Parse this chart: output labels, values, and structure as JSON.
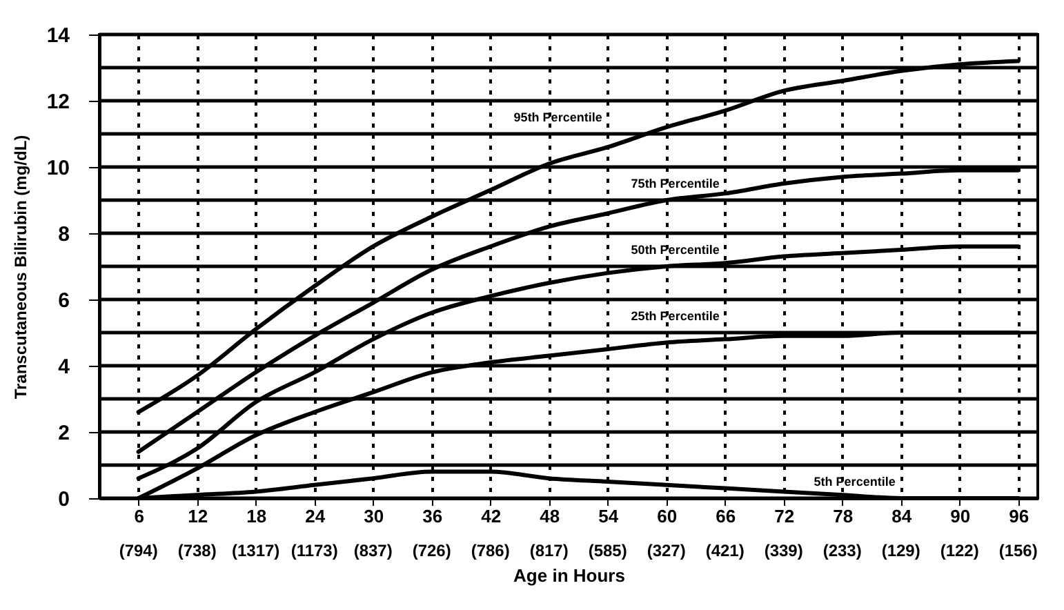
{
  "chart_data": {
    "type": "line",
    "xlabel": "Age in Hours",
    "ylabel": "Transcutaneous Bilirubin (mg/dL)",
    "x": [
      6,
      12,
      18,
      24,
      30,
      36,
      42,
      48,
      54,
      60,
      66,
      72,
      78,
      84,
      90,
      96
    ],
    "series": [
      {
        "name": "95th Percentile",
        "color": "#000000",
        "values": [
          2.6,
          3.7,
          5.1,
          6.4,
          7.6,
          8.5,
          9.3,
          10.1,
          10.6,
          11.2,
          11.7,
          12.3,
          12.6,
          12.9,
          13.1,
          13.2
        ]
      },
      {
        "name": "75th Percentile",
        "color": "#000000",
        "values": [
          1.4,
          2.6,
          3.8,
          4.9,
          5.9,
          6.9,
          7.6,
          8.2,
          8.6,
          9.0,
          9.2,
          9.5,
          9.7,
          9.8,
          9.9,
          9.9
        ]
      },
      {
        "name": "50th Percentile",
        "color": "#000000",
        "values": [
          0.6,
          1.5,
          2.9,
          3.8,
          4.8,
          5.6,
          6.1,
          6.5,
          6.8,
          7.0,
          7.1,
          7.3,
          7.4,
          7.5,
          7.6,
          7.6
        ]
      },
      {
        "name": "25th Percentile",
        "color": "#000000",
        "values": [
          0.0,
          0.9,
          1.9,
          2.6,
          3.2,
          3.8,
          4.1,
          4.3,
          4.5,
          4.7,
          4.8,
          4.9,
          4.9,
          5.0,
          5.0,
          5.0
        ]
      },
      {
        "name": "5th Percentile",
        "color": "#000000",
        "values": [
          0.0,
          0.1,
          0.2,
          0.4,
          0.6,
          0.8,
          0.8,
          0.6,
          0.5,
          0.4,
          0.3,
          0.2,
          0.1,
          0.0,
          0.0,
          0.0
        ]
      }
    ],
    "xlim": [
      2,
      98
    ],
    "xticks": [
      6,
      12,
      18,
      24,
      30,
      36,
      42,
      48,
      54,
      60,
      66,
      72,
      78,
      84,
      90,
      96
    ],
    "annotations": [
      "(794)",
      "(738)",
      "(1317)",
      "(1173)",
      "(837)",
      "(726)",
      "(786)",
      "(817)",
      "(585)",
      "(327)",
      "(421)",
      "(339)",
      "(233)",
      "(129)",
      "(122)",
      "(156)"
    ],
    "ylim": [
      0,
      14
    ],
    "yticks": [
      0,
      {
        "value": 1,
        "label": null
      },
      2,
      {
        "value": 3,
        "label": null
      },
      4,
      {
        "value": 5,
        "label": null
      },
      6,
      {
        "value": 7,
        "label": null
      },
      8,
      {
        "value": 9,
        "label": null
      },
      10,
      {
        "value": 11,
        "label": null
      },
      12,
      {
        "value": 13,
        "label": null
      },
      14
    ],
    "grid": true,
    "marker": "none",
    "line_style": "solid"
  }
}
